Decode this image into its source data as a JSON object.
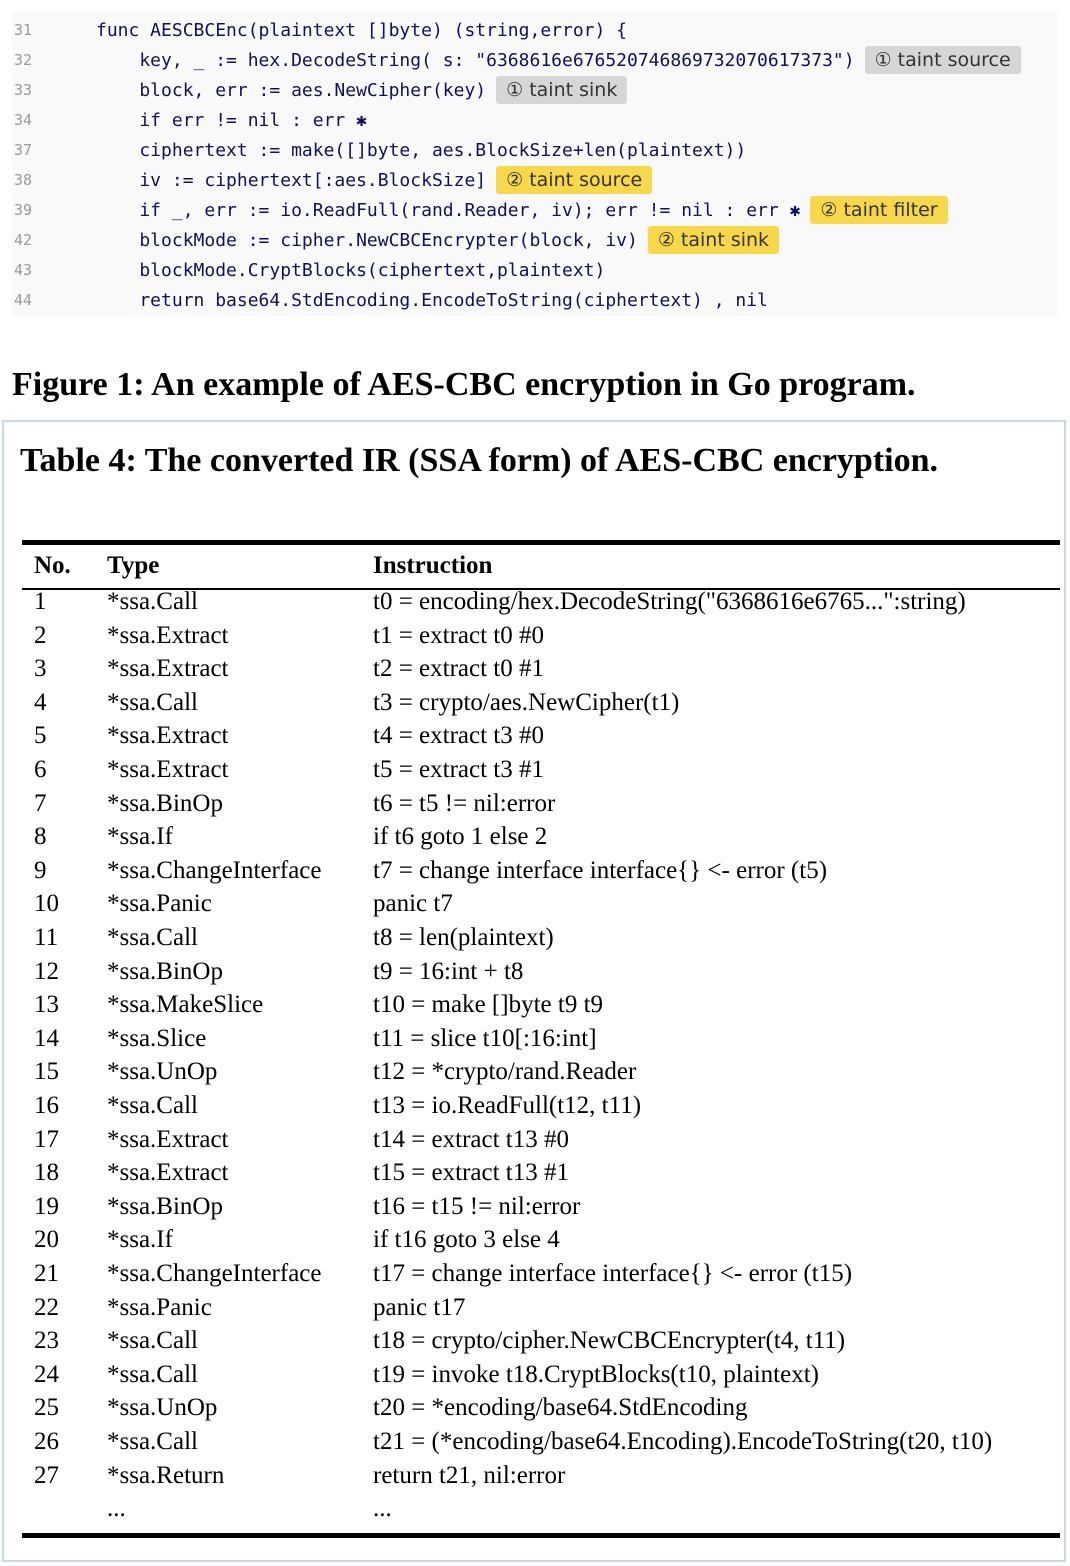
{
  "figure": {
    "code_lines": [
      {
        "no": "31",
        "text": "func AESCBCEnc(plaintext []byte) (string,error) {"
      },
      {
        "no": "32",
        "text": "    key, _ := hex.DecodeString( s: \"6368616e676520746869732070617373\")",
        "tag": {
          "text": "① taint source",
          "color": "#d6d6d6"
        }
      },
      {
        "no": "33",
        "text": "    block, err := aes.NewCipher(key)",
        "tag": {
          "text": "① taint sink",
          "color": "#d6d6d6"
        }
      },
      {
        "no": "34",
        "text": "    if err != nil : err ✱"
      },
      {
        "no": "37",
        "text": "    ciphertext := make([]byte, aes.BlockSize+len(plaintext))"
      },
      {
        "no": "38",
        "text": "    iv := ciphertext[:aes.BlockSize]",
        "tag": {
          "text": "② taint source",
          "color": "#f7d84a"
        }
      },
      {
        "no": "39",
        "text": "    if _, err := io.ReadFull(rand.Reader, iv); err != nil : err ✱",
        "tag": {
          "text": "② taint filter",
          "color": "#f7d84a"
        }
      },
      {
        "no": "42",
        "text": "    blockMode := cipher.NewCBCEncrypter(block, iv)",
        "tag": {
          "text": "② taint sink",
          "color": "#f7d84a"
        }
      },
      {
        "no": "43",
        "text": "    blockMode.CryptBlocks(ciphertext,plaintext)"
      },
      {
        "no": "44",
        "text": "    return base64.StdEncoding.EncodeToString(ciphertext) , nil"
      }
    ],
    "caption": "Figure 1: An example of AES-CBC encryption in Go program."
  },
  "table": {
    "caption": "Table 4: The converted IR (SSA form) of AES-CBC encryption.",
    "header": [
      "No.",
      "Type",
      "Instruction"
    ],
    "rows": [
      [
        "1",
        "*ssa.Call",
        "t0 = encoding/hex.DecodeString(\"6368616e6765...\":string)"
      ],
      [
        "2",
        "*ssa.Extract",
        "t1 = extract t0 #0"
      ],
      [
        "3",
        "*ssa.Extract",
        "t2 = extract t0 #1"
      ],
      [
        "4",
        "*ssa.Call",
        "t3 = crypto/aes.NewCipher(t1)"
      ],
      [
        "5",
        "*ssa.Extract",
        "t4 = extract t3 #0"
      ],
      [
        "6",
        "*ssa.Extract",
        "t5 = extract t3 #1"
      ],
      [
        "7",
        "*ssa.BinOp",
        "t6 = t5 != nil:error"
      ],
      [
        "8",
        "*ssa.If",
        "if t6 goto 1 else 2"
      ],
      [
        "9",
        "*ssa.ChangeInterface",
        "t7 = change interface interface{} <- error (t5)"
      ],
      [
        "10",
        "*ssa.Panic",
        "panic t7"
      ],
      [
        "11",
        "*ssa.Call",
        "t8 = len(plaintext)"
      ],
      [
        "12",
        "*ssa.BinOp",
        "t9 = 16:int + t8"
      ],
      [
        "13",
        "*ssa.MakeSlice",
        "t10 = make []byte t9 t9"
      ],
      [
        "14",
        "*ssa.Slice",
        "t11 = slice t10[:16:int]"
      ],
      [
        "15",
        "*ssa.UnOp",
        "t12 = *crypto/rand.Reader"
      ],
      [
        "16",
        "*ssa.Call",
        "t13 = io.ReadFull(t12, t11)"
      ],
      [
        "17",
        "*ssa.Extract",
        "t14 = extract t13 #0"
      ],
      [
        "18",
        "*ssa.Extract",
        "t15 = extract t13 #1"
      ],
      [
        "19",
        "*ssa.BinOp",
        "t16 = t15 != nil:error"
      ],
      [
        "20",
        "*ssa.If",
        "if t16 goto 3 else 4"
      ],
      [
        "21",
        "*ssa.ChangeInterface",
        "t17 = change interface interface{} <- error (t15)"
      ],
      [
        "22",
        "*ssa.Panic",
        "panic t17"
      ],
      [
        "23",
        "*ssa.Call",
        "t18 = crypto/cipher.NewCBCEncrypter(t4, t11)"
      ],
      [
        "24",
        "*ssa.Call",
        "t19 = invoke t18.CryptBlocks(t10, plaintext)"
      ],
      [
        "25",
        "*ssa.UnOp",
        "t20 = *encoding/base64.StdEncoding"
      ],
      [
        "26",
        "*ssa.Call",
        "t21 = (*encoding/base64.Encoding).EncodeToString(t20, t10)"
      ],
      [
        "27",
        "*ssa.Return",
        "return t21, nil:error"
      ]
    ],
    "ellipsis_row": {
      "type": "...",
      "instruction": "..."
    }
  }
}
